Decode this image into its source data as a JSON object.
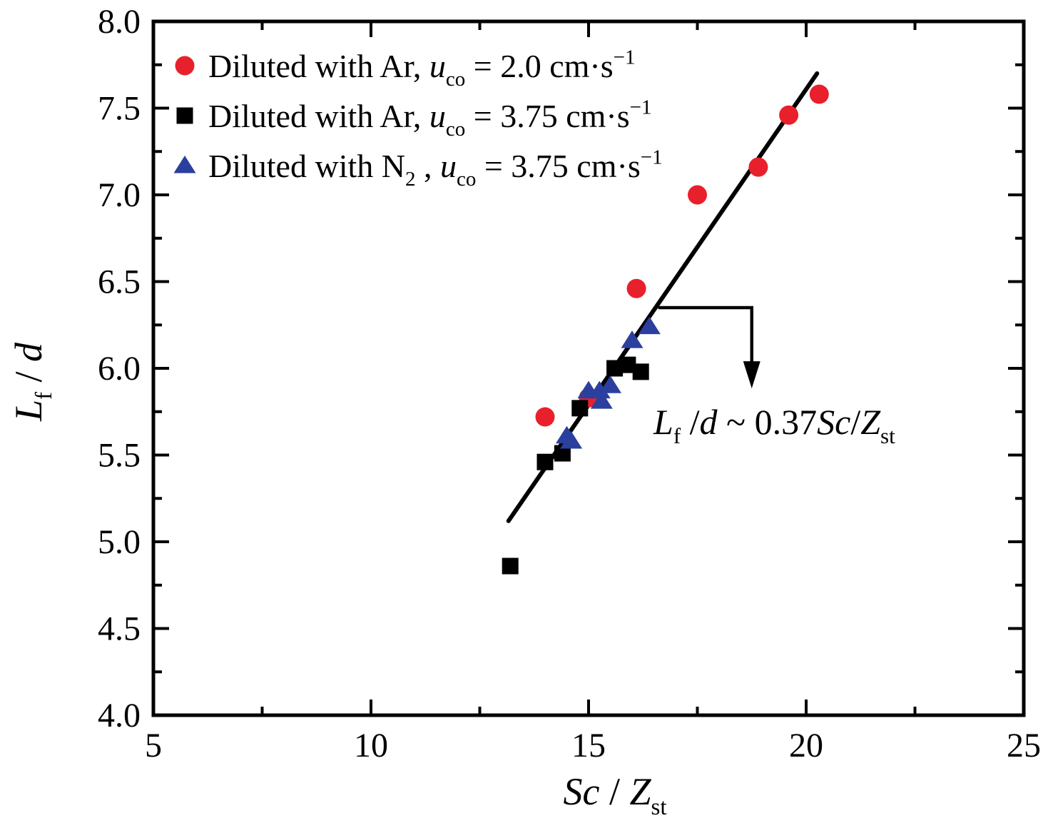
{
  "figure": {
    "background": "#ffffff"
  },
  "colors": {
    "red": "#e8202c",
    "black": "#000000",
    "blue": "#2b3f9e",
    "axis": "#000000"
  },
  "chart_data": {
    "type": "scatter",
    "title": "",
    "grid": false,
    "legend_position": "top-left",
    "axes": {
      "x": {
        "label_segments": [
          {
            "t": "Sc",
            "i": 1
          },
          {
            "t": " / "
          },
          {
            "t": "Z",
            "i": 1
          },
          {
            "t": "st",
            "sub": 1
          }
        ],
        "min": 5,
        "max": 25,
        "major_ticks": [
          5,
          10,
          15,
          20,
          25
        ],
        "major_tick_labels": [
          "5",
          "10",
          "15",
          "20",
          "25"
        ],
        "minor_ticks": [
          7.5,
          12.5,
          17.5,
          22.5
        ]
      },
      "y": {
        "label_segments": [
          {
            "t": "L",
            "i": 1
          },
          {
            "t": "f",
            "sub": 1
          },
          {
            "t": " / "
          },
          {
            "t": "d",
            "i": 1
          }
        ],
        "min": 4.0,
        "max": 8.0,
        "major_ticks": [
          4.0,
          4.5,
          5.0,
          5.5,
          6.0,
          6.5,
          7.0,
          7.5,
          8.0
        ],
        "major_tick_labels": [
          "4.0",
          "4.5",
          "5.0",
          "5.5",
          "6.0",
          "6.5",
          "7.0",
          "7.5",
          "8.0"
        ],
        "minor_ticks": [
          4.25,
          4.75,
          5.25,
          5.75,
          6.25,
          6.75,
          7.25,
          7.75
        ]
      }
    },
    "series": [
      {
        "name": "Diluted with Ar, u_co = 2.0 cm·s⁻¹",
        "marker": "circle",
        "color": "#e8202c",
        "label_segments": [
          {
            "t": "Diluted with Ar, "
          },
          {
            "t": "u",
            "i": 1
          },
          {
            "t": "co",
            "sub": 1
          },
          {
            "t": " = 2.0 cm·s"
          },
          {
            "t": "−1",
            "sup": 1
          }
        ],
        "points": [
          [
            20.3,
            7.58
          ],
          [
            19.6,
            7.46
          ],
          [
            18.9,
            7.16
          ],
          [
            17.5,
            7.0
          ],
          [
            16.1,
            6.46
          ],
          [
            15.0,
            5.83
          ],
          [
            14.0,
            5.72
          ]
        ]
      },
      {
        "name": "Diluted with Ar, u_co = 3.75 cm·s⁻¹",
        "marker": "square",
        "color": "#000000",
        "label_segments": [
          {
            "t": "Diluted with Ar, "
          },
          {
            "t": "u",
            "i": 1
          },
          {
            "t": "co",
            "sub": 1
          },
          {
            "t": " = 3.75 cm·s"
          },
          {
            "t": "−1",
            "sup": 1
          }
        ],
        "points": [
          [
            13.2,
            4.86
          ],
          [
            14.0,
            5.46
          ],
          [
            14.4,
            5.51
          ],
          [
            14.8,
            5.77
          ],
          [
            15.6,
            6.0
          ],
          [
            15.9,
            6.02
          ],
          [
            16.2,
            5.98
          ]
        ]
      },
      {
        "name": "Diluted with N2 , u_co = 3.75 cm·s⁻¹",
        "marker": "triangle",
        "color": "#2b3f9e",
        "label_segments": [
          {
            "t": "Diluted with N"
          },
          {
            "t": "2",
            "sub": 1
          },
          {
            "t": " , "
          },
          {
            "t": "u",
            "i": 1
          },
          {
            "t": "co",
            "sub": 1
          },
          {
            "t": " = 3.75 cm·s"
          },
          {
            "t": "−1",
            "sup": 1
          }
        ],
        "points": [
          [
            14.5,
            5.61
          ],
          [
            14.6,
            5.58
          ],
          [
            15.0,
            5.87
          ],
          [
            15.25,
            5.87
          ],
          [
            15.3,
            5.81
          ],
          [
            15.5,
            5.9
          ],
          [
            16.0,
            6.16
          ],
          [
            16.4,
            6.24
          ]
        ]
      }
    ],
    "fit_line": {
      "from": [
        13.16,
        5.12
      ],
      "to": [
        20.25,
        7.7
      ],
      "color": "#000000"
    },
    "annotation": {
      "text_segments": [
        {
          "t": "L",
          "i": 1
        },
        {
          "t": "f",
          "sub": 1
        },
        {
          "t": " /"
        },
        {
          "t": "d",
          "i": 1
        },
        {
          "t": " ~ 0.37"
        },
        {
          "t": "Sc",
          "i": 1
        },
        {
          "t": "/"
        },
        {
          "t": "Z",
          "i": 1
        },
        {
          "t": "st",
          "sub": 1
        }
      ],
      "arrow_path_data": [
        [
          16.6,
          6.35
        ],
        [
          18.75,
          6.35
        ],
        [
          18.75,
          5.95
        ]
      ]
    }
  }
}
